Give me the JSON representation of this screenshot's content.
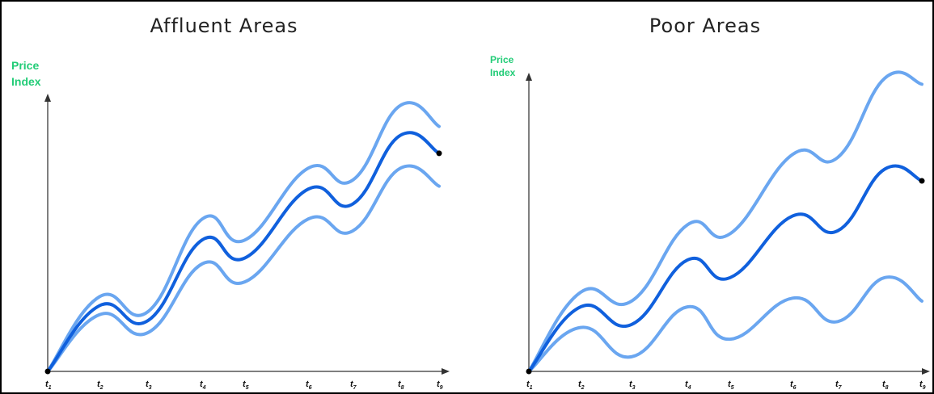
{
  "chart_data": [
    {
      "type": "line",
      "title": "Affluent Areas",
      "ylabel_line1": "Price",
      "ylabel_line2": "Index",
      "categories": [
        "t1",
        "t2",
        "t3",
        "t4",
        "t5",
        "t6",
        "t7",
        "t8",
        "t9"
      ],
      "tick_labels": [
        {
          "main": "t",
          "sub": "1"
        },
        {
          "main": "t",
          "sub": "2"
        },
        {
          "main": "t",
          "sub": "3"
        },
        {
          "main": "t",
          "sub": "4"
        },
        {
          "main": "t",
          "sub": "5"
        },
        {
          "main": "t",
          "sub": "6"
        },
        {
          "main": "t",
          "sub": "7"
        },
        {
          "main": "t",
          "sub": "8"
        },
        {
          "main": "t",
          "sub": "9"
        }
      ],
      "ylim": [
        0,
        100
      ],
      "series": [
        {
          "role": "upper",
          "color": "#6aa6f0",
          "values": [
            0,
            25,
            20,
            51,
            44,
            68,
            64,
            89,
            82
          ]
        },
        {
          "role": "central",
          "color": "#1060dd",
          "values": [
            0,
            22,
            17,
            44,
            38,
            61,
            56,
            79,
            73
          ]
        },
        {
          "role": "lower",
          "color": "#6aa6f0",
          "values": [
            0,
            19,
            13,
            36,
            30,
            51,
            47,
            68,
            62
          ]
        }
      ]
    },
    {
      "type": "line",
      "title": "Poor Areas",
      "ylabel_line1": "Price",
      "ylabel_line2": "Index",
      "categories": [
        "t1",
        "t2",
        "t3",
        "t4",
        "t5",
        "t6",
        "t7",
        "t8",
        "t9"
      ],
      "tick_labels": [
        {
          "main": "t",
          "sub": "1"
        },
        {
          "main": "t",
          "sub": "2"
        },
        {
          "main": "t",
          "sub": "3"
        },
        {
          "main": "t",
          "sub": "4"
        },
        {
          "main": "t",
          "sub": "5"
        },
        {
          "main": "t",
          "sub": "6"
        },
        {
          "main": "t",
          "sub": "7"
        },
        {
          "main": "t",
          "sub": "8"
        },
        {
          "main": "t",
          "sub": "9"
        }
      ],
      "ylim": [
        0,
        100
      ],
      "series": [
        {
          "role": "upper",
          "color": "#6aa6f0",
          "values": [
            0,
            27,
            24,
            50,
            47,
            74,
            73,
            100,
            98
          ]
        },
        {
          "role": "central",
          "color": "#1060dd",
          "values": [
            0,
            22,
            16,
            38,
            32,
            53,
            48,
            69,
            65
          ]
        },
        {
          "role": "lower",
          "color": "#6aa6f0",
          "values": [
            0,
            15,
            5,
            22,
            11,
            25,
            17,
            32,
            24
          ]
        }
      ]
    }
  ]
}
